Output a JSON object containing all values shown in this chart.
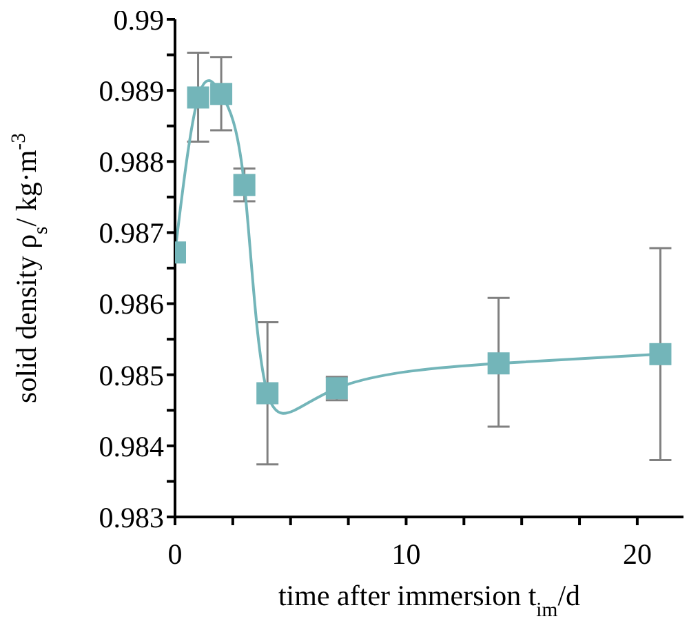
{
  "chart_data": {
    "type": "line",
    "xlabel": "time after immersion t$_{im}$/d",
    "ylabel": "solid density ρ$_{s}$/ kg·m$^{-3}$",
    "x": [
      0,
      1,
      2,
      3,
      4,
      7,
      14,
      21
    ],
    "series": [
      {
        "color": "#73b5b9",
        "values": [
          0.98672,
          0.9889,
          0.98895,
          0.98767,
          0.98474,
          0.98481,
          0.98516,
          0.98529
        ],
        "errors": [
          null,
          [
            0.98828,
            0.98953
          ],
          [
            0.98844,
            0.98947
          ],
          [
            0.98744,
            0.9879
          ],
          [
            0.98374,
            0.98574
          ],
          [
            0.98464,
            0.98497
          ],
          [
            0.98427,
            0.98608
          ],
          [
            0.9838,
            0.98678
          ]
        ]
      }
    ],
    "xlim": [
      0,
      22
    ],
    "ylim": [
      0.983,
      0.99
    ],
    "xticks": [
      0,
      {
        "value": 2.5,
        "label": null
      },
      {
        "value": 5,
        "label": null
      },
      {
        "value": 7.5,
        "label": null
      },
      10,
      {
        "value": 12.5,
        "label": null
      },
      {
        "value": 15,
        "label": null
      },
      {
        "value": 17.5,
        "label": null
      },
      20
    ],
    "yticks": [
      0.983,
      {
        "value": 0.9835,
        "label": null
      },
      0.984,
      {
        "value": 0.9845,
        "label": null
      },
      0.985,
      {
        "value": 0.9855,
        "label": null
      },
      0.986,
      {
        "value": 0.9865,
        "label": null
      },
      0.987,
      {
        "value": 0.9875,
        "label": null
      },
      0.988,
      {
        "value": 0.9885,
        "label": null
      },
      0.989,
      {
        "value": 0.9895,
        "label": null
      },
      0.99
    ],
    "marker": "square",
    "line_style": "solid",
    "grid": false
  }
}
